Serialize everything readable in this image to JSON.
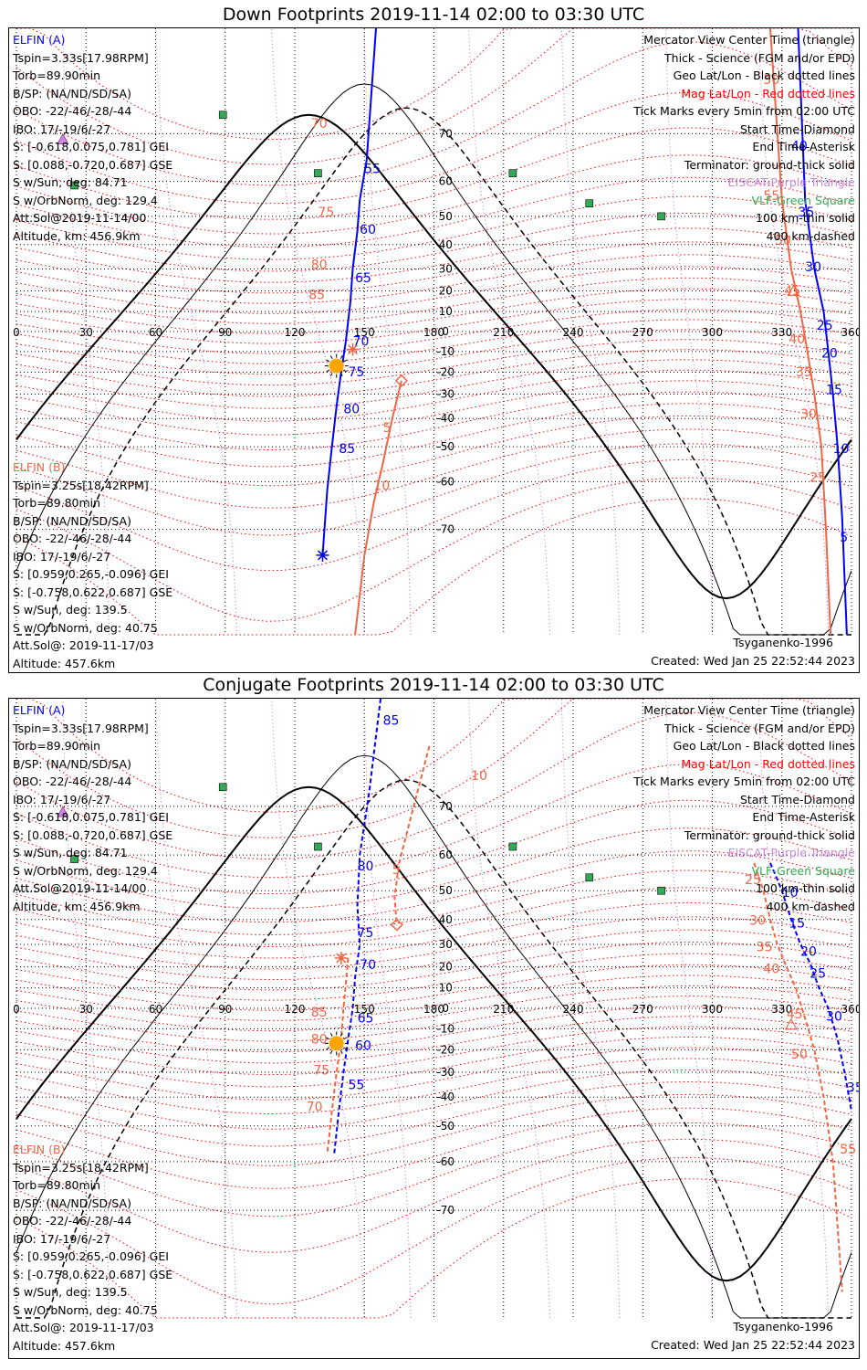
{
  "panels": [
    {
      "title": "Down Footprints 2019-11-14 02:00 to 03:30 UTC",
      "elfin_a": {
        "name": "ELFIN (A)",
        "lines": [
          "Tspin=3.33s[17.98RPM]",
          "Torb=89.90min",
          "B/SP: (NA/ND/SD/SA)",
          "OBO: -22/-46/-28/-44",
          "IBO: 17/-19/6/-27",
          "S: [-0.618,0.075,0.781] GEI",
          "S: [0.088,-0.720,0.687] GSE",
          "S w/Sun, deg: 84.71",
          "S w/OrbNorm, deg: 129.4",
          "Att.Sol@2019-11-14/00",
          "Altitude, km: 456.9km"
        ]
      },
      "elfin_b": {
        "name": "ELFIN (B)",
        "lines": [
          "Tspin=3.25s[18.42RPM]",
          "Torb=89.80min",
          "B/SP: (NA/ND/SD/SA)",
          "OBO: -22/-46/-28/-44",
          "IBO: 17/-19/6/-27",
          "S: [0.959,0.265,-0.096] GEI",
          "S: [-0.758,0.622,0.687] GSE",
          "S w/Sun, deg: 139.5",
          "S w/OrbNorm, deg: 40.75",
          "Att.Sol@: 2019-11-17/03",
          "Altitude: 457.6km"
        ]
      },
      "legend": [
        "Mercator View Center Time (triangle)",
        "Thick - Science (FGM and/or EPD)",
        "Geo Lat/Lon - Black dotted lines",
        "Mag Lat/Lon - Red dotted lines",
        "Tick Marks every 5min from 02:00 UTC",
        "Start Time-Diamond",
        "End Time-Asterisk",
        "Terminator: ground-thick solid",
        "EISCAT-Purple Triangle",
        "VLF-Green Square",
        "100 km-thin solid",
        "400 km-dashed"
      ],
      "model": "Tsyganenko-1996",
      "created": "Created: Wed Jan 25 22:52:44 2023"
    },
    {
      "title": "Conjugate Footprints 2019-11-14 02:00 to 03:30 UTC",
      "elfin_a": {
        "name": "ELFIN (A)",
        "lines": [
          "Tspin=3.33s[17.98RPM]",
          "Torb=89.90min",
          "B/SP: (NA/ND/SD/SA)",
          "OBO: -22/-46/-28/-44",
          "IBO: 17/-19/6/-27",
          "S: [-0.618,0.075,0.781] GEI",
          "S: [0.088,-0.720,0.687] GSE",
          "S w/Sun, deg: 84.71",
          "S w/OrbNorm, deg: 129.4",
          "Att.Sol@2019-11-14/00",
          "Altitude, km: 456.9km"
        ]
      },
      "elfin_b": {
        "name": "ELFIN (B)",
        "lines": [
          "Tspin=3.25s[18.42RPM]",
          "Torb=89.80min",
          "B/SP: (NA/ND/SD/SA)",
          "OBO: -22/-46/-28/-44",
          "IBO: 17/-19/6/-27",
          "S: [0.959,0.265,-0.096] GEI",
          "S: [-0.758,0.622,0.687] GSE",
          "S w/Sun, deg: 139.5",
          "S w/OrbNorm, deg: 40.75",
          "Att.Sol@: 2019-11-17/03",
          "Altitude: 457.6km"
        ]
      },
      "legend": [
        "Mercator View Center Time (triangle)",
        "Thick - Science (FGM and/or EPD)",
        "Geo Lat/Lon - Black dotted lines",
        "Mag Lat/Lon - Red dotted lines",
        "Tick Marks every 5min from 02:00 UTC",
        "Start Time-Diamond",
        "End Time-Asterisk",
        "Terminator: ground-thick solid",
        "EISCAT-Purple Triangle",
        "VLF-Green Square",
        "100 km-thin solid",
        "400 km-dashed"
      ],
      "model": "Tsyganenko-1996",
      "created": "Created: Wed Jan 25 22:52:44 2023"
    }
  ],
  "colors": {
    "elfin_a": "#0000ff",
    "elfin_b": "#ee6644",
    "mag_grid": "#ff0000",
    "eiscat": "#cc88dd",
    "vlf": "#33aa55",
    "sun": "#ffa500"
  },
  "chart_data": [
    {
      "type": "scatter",
      "projection": "mercator",
      "title": "Down Footprints 2019-11-14 02:00 to 03:30 UTC",
      "x_ticks": [
        0,
        30,
        60,
        90,
        120,
        150,
        180,
        210,
        240,
        270,
        300,
        330,
        360
      ],
      "y_ticks": [
        -70,
        -60,
        -50,
        -40,
        -30,
        -20,
        -10,
        0,
        10,
        20,
        30,
        40,
        50,
        60,
        70
      ],
      "xlim": [
        0,
        360
      ],
      "ylim": [
        -82,
        82
      ],
      "series": [
        {
          "name": "ELFIN (A)",
          "color": "#0000ff",
          "points": [
            [
              155,
              82
            ],
            [
              151,
              65
            ],
            [
              148,
              55
            ],
            [
              147,
              45
            ],
            [
              145,
              30
            ],
            [
              144,
              15
            ],
            [
              142,
              -5
            ],
            [
              140,
              -20
            ],
            [
              138,
              -35
            ],
            [
              136,
              -50
            ],
            [
              134,
              -62
            ],
            [
              132,
              -74
            ]
          ]
        },
        {
          "name": "ELFIN (B)",
          "color": "#ee6644",
          "points": [
            [
              166,
              -24
            ],
            [
              162,
              -40
            ],
            [
              158,
              -55
            ],
            [
              154,
              -65
            ],
            [
              150,
              -74
            ],
            [
              146,
              -82
            ]
          ]
        },
        {
          "name": "ELFIN (A)",
          "color": "#0000ff",
          "points": [
            [
              337,
              82
            ],
            [
              340,
              55
            ],
            [
              344,
              30
            ],
            [
              348,
              10
            ],
            [
              350,
              -10
            ],
            [
              352,
              -30
            ],
            [
              354,
              -50
            ],
            [
              356,
              -68
            ],
            [
              358,
              -82
            ]
          ]
        },
        {
          "name": "ELFIN (B)",
          "color": "#ee6644",
          "points": [
            [
              325,
              82
            ],
            [
              330,
              55
            ],
            [
              334,
              30
            ],
            [
              338,
              10
            ],
            [
              341,
              -10
            ],
            [
              344,
              -30
            ],
            [
              347,
              -50
            ],
            [
              349,
              -70
            ],
            [
              351,
              -82
            ]
          ]
        }
      ],
      "tick_labels_a": [
        {
          "label": "55",
          "lon": 150,
          "lat": 62
        },
        {
          "label": "60",
          "lon": 148,
          "lat": 44
        },
        {
          "label": "65",
          "lon": 146,
          "lat": 24
        },
        {
          "label": "70",
          "lon": 145,
          "lat": -7
        },
        {
          "label": "75",
          "lon": 143,
          "lat": -22
        },
        {
          "label": "80",
          "lon": 141,
          "lat": -38
        },
        {
          "label": "85",
          "lon": 139,
          "lat": -52
        },
        {
          "label": "40",
          "lon": 334,
          "lat": 67
        },
        {
          "label": "35",
          "lon": 337,
          "lat": 50
        },
        {
          "label": "30",
          "lon": 340,
          "lat": 29
        },
        {
          "label": "25",
          "lon": 345,
          "lat": 1
        },
        {
          "label": "20",
          "lon": 347,
          "lat": -13
        },
        {
          "label": "15",
          "lon": 349,
          "lat": -30
        },
        {
          "label": "10",
          "lon": 352,
          "lat": -52
        },
        {
          "label": "5",
          "lon": 355,
          "lat": -72
        }
      ],
      "tick_labels_b": [
        {
          "label": "70",
          "lon": 127,
          "lat": 71
        },
        {
          "label": "75",
          "lon": 130,
          "lat": 50
        },
        {
          "label": "80",
          "lon": 127,
          "lat": 30
        },
        {
          "label": "85",
          "lon": 126,
          "lat": 16
        },
        {
          "label": "5",
          "lon": 158,
          "lat": -45
        },
        {
          "label": "10",
          "lon": 154,
          "lat": -62
        },
        {
          "label": "50",
          "lon": 322,
          "lat": 77
        },
        {
          "label": "55",
          "lon": 322,
          "lat": 55
        },
        {
          "label": "50",
          "lon": 327,
          "lat": 40
        },
        {
          "label": "45",
          "lon": 331,
          "lat": 18
        },
        {
          "label": "40",
          "lon": 333,
          "lat": -6
        },
        {
          "label": "35",
          "lon": 336,
          "lat": -22
        },
        {
          "label": "30",
          "lon": 338,
          "lat": -40
        },
        {
          "label": "25",
          "lon": 342,
          "lat": -60
        }
      ],
      "start_diamond": {
        "lon": 166,
        "lat": -24
      },
      "end_asterisk": [
        {
          "lon": 145,
          "lat": -9
        },
        {
          "lon": 132,
          "lat": -74
        }
      ],
      "center_triangle": [
        {
          "lon": 335,
          "lat": 20
        }
      ],
      "sun": {
        "lon": 138,
        "lat": -17
      },
      "eiscat": [
        {
          "lon": 20,
          "lat": 69
        }
      ],
      "vlf": [
        {
          "lon": 89,
          "lat": 73
        },
        {
          "lon": 25,
          "lat": 59
        },
        {
          "lon": 130,
          "lat": 62
        },
        {
          "lon": 214,
          "lat": 62
        },
        {
          "lon": 247,
          "lat": 54
        },
        {
          "lon": 278,
          "lat": 50
        }
      ]
    },
    {
      "type": "scatter",
      "projection": "mercator",
      "title": "Conjugate Footprints 2019-11-14 02:00 to 03:30 UTC",
      "x_ticks": [
        0,
        30,
        60,
        90,
        120,
        150,
        180,
        210,
        240,
        270,
        300,
        330,
        360
      ],
      "y_ticks": [
        -70,
        -60,
        -50,
        -40,
        -30,
        -20,
        -10,
        0,
        10,
        20,
        30,
        40,
        50,
        60,
        70
      ],
      "xlim": [
        0,
        360
      ],
      "ylim": [
        -82,
        82
      ],
      "series": [
        {
          "name": "ELFIN (A)",
          "color": "#0000ff",
          "points": [
            [
              157,
              82
            ],
            [
              152,
              72
            ],
            [
              148,
              60
            ],
            [
              147,
              45
            ],
            [
              148,
              30
            ],
            [
              146,
              15
            ],
            [
              145,
              0
            ],
            [
              143,
              -15
            ],
            [
              141,
              -30
            ],
            [
              139,
              -45
            ],
            [
              137,
              -58
            ]
          ]
        },
        {
          "name": "ELFIN (B)",
          "color": "#ee6644",
          "points": [
            [
              178,
              78
            ],
            [
              170,
              68
            ],
            [
              165,
              58
            ],
            [
              163,
              48
            ],
            [
              164,
              38
            ]
          ]
        },
        {
          "name": "ELFIN (B)",
          "color": "#ee6644",
          "points": [
            [
              143,
              24
            ],
            [
              142,
              12
            ],
            [
              141,
              0
            ],
            [
              140,
              -15
            ],
            [
              138,
              -30
            ],
            [
              136,
              -45
            ],
            [
              134,
              -58
            ]
          ]
        },
        {
          "name": "ELFIN (A)",
          "color": "#0000ff",
          "points": [
            [
              325,
              58
            ],
            [
              330,
              50
            ],
            [
              334,
              40
            ],
            [
              338,
              30
            ],
            [
              342,
              22
            ],
            [
              346,
              10
            ],
            [
              350,
              0
            ],
            [
              354,
              -15
            ],
            [
              357,
              -30
            ],
            [
              360,
              -45
            ]
          ]
        },
        {
          "name": "ELFIN (B)",
          "color": "#ee6644",
          "points": [
            [
              318,
              58
            ],
            [
              322,
              50
            ],
            [
              325,
              40
            ],
            [
              328,
              30
            ],
            [
              332,
              20
            ],
            [
              336,
              10
            ],
            [
              340,
              -5
            ],
            [
              344,
              -20
            ],
            [
              348,
              -40
            ],
            [
              352,
              -60
            ],
            [
              356,
              -80
            ]
          ]
        }
      ],
      "tick_labels_a": [
        {
          "label": "85",
          "lon": 158,
          "lat": 80
        },
        {
          "label": "80",
          "lon": 147,
          "lat": 56
        },
        {
          "label": "75",
          "lon": 147,
          "lat": 33
        },
        {
          "label": "70",
          "lon": 148,
          "lat": 19
        },
        {
          "label": "65",
          "lon": 147,
          "lat": -7
        },
        {
          "label": "60",
          "lon": 146,
          "lat": -20
        },
        {
          "label": "55",
          "lon": 143,
          "lat": -37
        },
        {
          "label": "10",
          "lon": 330,
          "lat": 48
        },
        {
          "label": "15",
          "lon": 333,
          "lat": 37
        },
        {
          "label": "20",
          "lon": 338,
          "lat": 25
        },
        {
          "label": "25",
          "lon": 342,
          "lat": 15
        },
        {
          "label": "30",
          "lon": 349,
          "lat": -6
        },
        {
          "label": "35",
          "lon": 358,
          "lat": -38
        }
      ],
      "tick_labels_b": [
        {
          "label": "10",
          "lon": 196,
          "lat": 74
        },
        {
          "label": "5",
          "lon": 162,
          "lat": 55
        },
        {
          "label": "85",
          "lon": 127,
          "lat": -4
        },
        {
          "label": "80",
          "lon": 127,
          "lat": -17
        },
        {
          "label": "75",
          "lon": 128,
          "lat": -31
        },
        {
          "label": "70",
          "lon": 125,
          "lat": -45
        },
        {
          "label": "25",
          "lon": 314,
          "lat": 52
        },
        {
          "label": "30",
          "lon": 316,
          "lat": 38
        },
        {
          "label": "35",
          "lon": 319,
          "lat": 27
        },
        {
          "label": "40",
          "lon": 322,
          "lat": 17
        },
        {
          "label": "45",
          "lon": 332,
          "lat": -5
        },
        {
          "label": "50",
          "lon": 334,
          "lat": -24
        },
        {
          "label": "55",
          "lon": 355,
          "lat": -58
        }
      ],
      "start_diamond": {
        "lon": 164,
        "lat": 38
      },
      "end_asterisk": [
        {
          "lon": 140,
          "lat": 24
        }
      ],
      "center_triangle": [
        {
          "lon": 334,
          "lat": -8
        }
      ],
      "sun": {
        "lon": 138,
        "lat": -17
      },
      "eiscat": [
        {
          "lon": 20,
          "lat": 69
        }
      ],
      "vlf": [
        {
          "lon": 89,
          "lat": 73
        },
        {
          "lon": 25,
          "lat": 59
        },
        {
          "lon": 130,
          "lat": 62
        },
        {
          "lon": 214,
          "lat": 62
        },
        {
          "lon": 247,
          "lat": 54
        },
        {
          "lon": 278,
          "lat": 50
        }
      ]
    }
  ]
}
